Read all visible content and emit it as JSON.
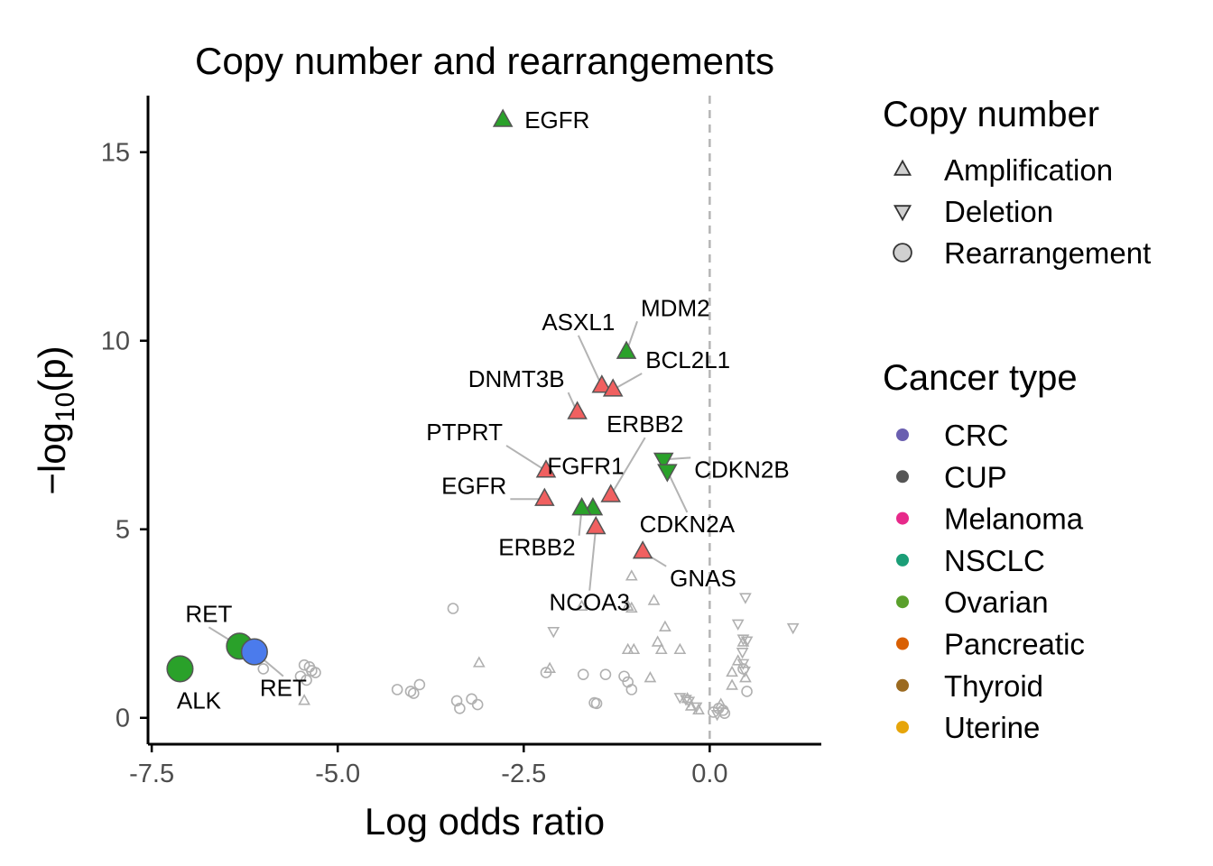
{
  "chart_data": {
    "type": "scatter",
    "title": "Copy number and rearrangements",
    "xlabel": "Log odds ratio",
    "ylabel_prefix": "−log",
    "ylabel_sub": "10",
    "ylabel_suffix": "(p)",
    "xlim": [
      -7.55,
      1.5
    ],
    "ylim": [
      -0.7,
      16.5
    ],
    "x_ticks": [
      -7.5,
      -5.0,
      -2.5,
      0.0
    ],
    "x_tick_labels": [
      "-7.5",
      "-5.0",
      "-2.5",
      "0.0"
    ],
    "y_ticks": [
      0,
      5,
      10,
      15
    ],
    "y_tick_labels": [
      "0",
      "5",
      "10",
      "15"
    ],
    "reference_line_x": 0,
    "grid": false,
    "legend_placement": "right",
    "colors": {
      "highlight_green": "#2aa12a",
      "highlight_red": "#f06060",
      "highlight_blue": "#4b7bec",
      "background_gray": "#b0b0b0",
      "reference_line": "#b5b5b5"
    },
    "highlighted_points": [
      {
        "label": "EGFR",
        "x": -2.78,
        "y": 15.85,
        "shape": "triangle-up",
        "color": "#2aa12a"
      },
      {
        "label": "MDM2",
        "x": -1.12,
        "y": 9.7,
        "shape": "triangle-up",
        "color": "#2aa12a"
      },
      {
        "label": "ASXL1",
        "x": -1.45,
        "y": 8.8,
        "shape": "triangle-up",
        "color": "#f06060"
      },
      {
        "label": "BCL2L1",
        "x": -1.3,
        "y": 8.7,
        "shape": "triangle-up",
        "color": "#f06060"
      },
      {
        "label": "DNMT3B",
        "x": -1.78,
        "y": 8.1,
        "shape": "triangle-up",
        "color": "#f06060"
      },
      {
        "label": "PTPRT",
        "x": -2.2,
        "y": 6.55,
        "shape": "triangle-up",
        "color": "#f06060"
      },
      {
        "label": "ERBB2",
        "x": -1.33,
        "y": 5.9,
        "shape": "triangle-up",
        "color": "#f06060"
      },
      {
        "label": "CDKN2B",
        "x": -0.62,
        "y": 6.85,
        "shape": "triangle-down",
        "color": "#2aa12a"
      },
      {
        "label": "CDKN2A",
        "x": -0.57,
        "y": 6.55,
        "shape": "triangle-down",
        "color": "#2aa12a"
      },
      {
        "label": "EGFR",
        "x": -2.22,
        "y": 5.8,
        "shape": "triangle-up",
        "color": "#f06060"
      },
      {
        "label": "FGFR1",
        "x": -1.57,
        "y": 5.55,
        "shape": "triangle-up",
        "color": "#2aa12a"
      },
      {
        "label": "ERBB2",
        "x": -1.72,
        "y": 5.55,
        "shape": "triangle-up",
        "color": "#2aa12a"
      },
      {
        "label": "NCOA3",
        "x": -1.53,
        "y": 5.05,
        "shape": "triangle-up",
        "color": "#f06060"
      },
      {
        "label": "GNAS",
        "x": -0.9,
        "y": 4.4,
        "shape": "triangle-up",
        "color": "#f06060"
      },
      {
        "label": "RET",
        "x": -6.32,
        "y": 1.9,
        "shape": "circle",
        "color": "#2aa12a"
      },
      {
        "label": "RET",
        "x": -6.12,
        "y": 1.75,
        "shape": "circle",
        "color": "#4b7bec"
      },
      {
        "label": "ALK",
        "x": -7.12,
        "y": 1.3,
        "shape": "circle",
        "color": "#2aa12a"
      }
    ],
    "background_points": [
      {
        "x": -3.45,
        "y": 2.9,
        "shape": "circle"
      },
      {
        "x": -5.45,
        "y": 1.4,
        "shape": "circle"
      },
      {
        "x": -5.38,
        "y": 1.35,
        "shape": "circle"
      },
      {
        "x": -5.3,
        "y": 1.2,
        "shape": "circle"
      },
      {
        "x": -5.5,
        "y": 1.1,
        "shape": "circle"
      },
      {
        "x": -5.42,
        "y": 1.0,
        "shape": "circle"
      },
      {
        "x": -5.35,
        "y": 1.25,
        "shape": "circle"
      },
      {
        "x": -4.2,
        "y": 0.75,
        "shape": "circle"
      },
      {
        "x": -4.02,
        "y": 0.7,
        "shape": "circle"
      },
      {
        "x": -3.98,
        "y": 0.65,
        "shape": "circle"
      },
      {
        "x": -3.9,
        "y": 0.88,
        "shape": "circle"
      },
      {
        "x": -3.4,
        "y": 0.45,
        "shape": "circle"
      },
      {
        "x": -3.36,
        "y": 0.25,
        "shape": "circle"
      },
      {
        "x": -3.2,
        "y": 0.5,
        "shape": "circle"
      },
      {
        "x": -3.12,
        "y": 0.35,
        "shape": "circle"
      },
      {
        "x": -2.2,
        "y": 1.2,
        "shape": "circle"
      },
      {
        "x": -1.7,
        "y": 1.15,
        "shape": "circle"
      },
      {
        "x": -1.55,
        "y": 0.4,
        "shape": "circle"
      },
      {
        "x": -1.52,
        "y": 0.38,
        "shape": "circle"
      },
      {
        "x": -1.4,
        "y": 1.15,
        "shape": "circle"
      },
      {
        "x": -1.15,
        "y": 1.1,
        "shape": "circle"
      },
      {
        "x": -1.1,
        "y": 0.95,
        "shape": "circle"
      },
      {
        "x": -1.05,
        "y": 0.75,
        "shape": "circle"
      },
      {
        "x": 0.05,
        "y": 0.15,
        "shape": "circle"
      },
      {
        "x": 0.12,
        "y": 0.25,
        "shape": "circle"
      },
      {
        "x": 0.18,
        "y": 0.2,
        "shape": "circle"
      },
      {
        "x": 0.2,
        "y": 0.12,
        "shape": "circle"
      },
      {
        "x": 0.5,
        "y": 0.7,
        "shape": "circle"
      },
      {
        "x": 0.45,
        "y": 1.3,
        "shape": "circle"
      },
      {
        "x": -6.0,
        "y": 1.3,
        "shape": "circle"
      },
      {
        "x": -5.45,
        "y": 0.45,
        "shape": "triangle-up"
      },
      {
        "x": -3.1,
        "y": 1.45,
        "shape": "triangle-up"
      },
      {
        "x": -2.15,
        "y": 1.3,
        "shape": "triangle-up"
      },
      {
        "x": -1.72,
        "y": 2.95,
        "shape": "triangle-up"
      },
      {
        "x": -1.05,
        "y": 3.75,
        "shape": "triangle-up"
      },
      {
        "x": -1.1,
        "y": 2.95,
        "shape": "triangle-up"
      },
      {
        "x": -0.75,
        "y": 3.1,
        "shape": "triangle-up"
      },
      {
        "x": -0.6,
        "y": 2.4,
        "shape": "triangle-up"
      },
      {
        "x": -0.7,
        "y": 2.0,
        "shape": "triangle-up"
      },
      {
        "x": -0.65,
        "y": 1.8,
        "shape": "triangle-up"
      },
      {
        "x": -0.4,
        "y": 1.8,
        "shape": "triangle-up"
      },
      {
        "x": -1.1,
        "y": 1.8,
        "shape": "triangle-up"
      },
      {
        "x": -1.02,
        "y": 1.8,
        "shape": "triangle-up"
      },
      {
        "x": -0.8,
        "y": 1.05,
        "shape": "triangle-up"
      },
      {
        "x": -0.3,
        "y": 0.5,
        "shape": "triangle-up"
      },
      {
        "x": -0.25,
        "y": 0.3,
        "shape": "triangle-up"
      },
      {
        "x": -0.15,
        "y": 0.2,
        "shape": "triangle-up"
      },
      {
        "x": 0.15,
        "y": 0.35,
        "shape": "triangle-up"
      },
      {
        "x": 0.3,
        "y": 1.2,
        "shape": "triangle-up"
      },
      {
        "x": 0.38,
        "y": 1.5,
        "shape": "triangle-up"
      },
      {
        "x": 0.48,
        "y": 1.05,
        "shape": "triangle-up"
      },
      {
        "x": 0.3,
        "y": 0.85,
        "shape": "triangle-up"
      },
      {
        "x": 0.45,
        "y": 2.0,
        "shape": "triangle-up"
      },
      {
        "x": -1.05,
        "y": 2.9,
        "shape": "triangle-up"
      },
      {
        "x": -2.1,
        "y": 2.3,
        "shape": "triangle-down"
      },
      {
        "x": 0.38,
        "y": 2.5,
        "shape": "triangle-down"
      },
      {
        "x": 0.48,
        "y": 3.2,
        "shape": "triangle-down"
      },
      {
        "x": 0.45,
        "y": 2.1,
        "shape": "triangle-down"
      },
      {
        "x": 0.44,
        "y": 1.75,
        "shape": "triangle-down"
      },
      {
        "x": 1.12,
        "y": 2.4,
        "shape": "triangle-down"
      },
      {
        "x": -0.4,
        "y": 0.55,
        "shape": "triangle-down"
      },
      {
        "x": -0.32,
        "y": 0.5,
        "shape": "triangle-down"
      },
      {
        "x": -0.28,
        "y": 0.45,
        "shape": "triangle-down"
      },
      {
        "x": -0.18,
        "y": 0.3,
        "shape": "triangle-down"
      },
      {
        "x": 0.1,
        "y": 0.1,
        "shape": "triangle-down"
      },
      {
        "x": 0.45,
        "y": 1.45,
        "shape": "triangle-down"
      },
      {
        "x": 0.47,
        "y": 1.25,
        "shape": "triangle-down"
      },
      {
        "x": 0.5,
        "y": 2.05,
        "shape": "triangle-down"
      }
    ]
  },
  "legend": {
    "copy_number": {
      "title": "Copy number",
      "items": [
        {
          "label": "Amplification",
          "shape": "triangle-up"
        },
        {
          "label": "Deletion",
          "shape": "triangle-down"
        },
        {
          "label": "Rearrangement",
          "shape": "circle"
        }
      ]
    },
    "cancer_type": {
      "title": "Cancer type",
      "items": [
        {
          "label": "CRC",
          "color": "#6a5fb0"
        },
        {
          "label": "CUP",
          "color": "#555555"
        },
        {
          "label": "Melanoma",
          "color": "#e7298a"
        },
        {
          "label": "NSCLC",
          "color": "#1b9e77"
        },
        {
          "label": "Ovarian",
          "color": "#5aa02c"
        },
        {
          "label": "Pancreatic",
          "color": "#d95f02"
        },
        {
          "label": "Thyroid",
          "color": "#9b6a20"
        },
        {
          "label": "Uterine",
          "color": "#e6a50a"
        }
      ]
    }
  }
}
